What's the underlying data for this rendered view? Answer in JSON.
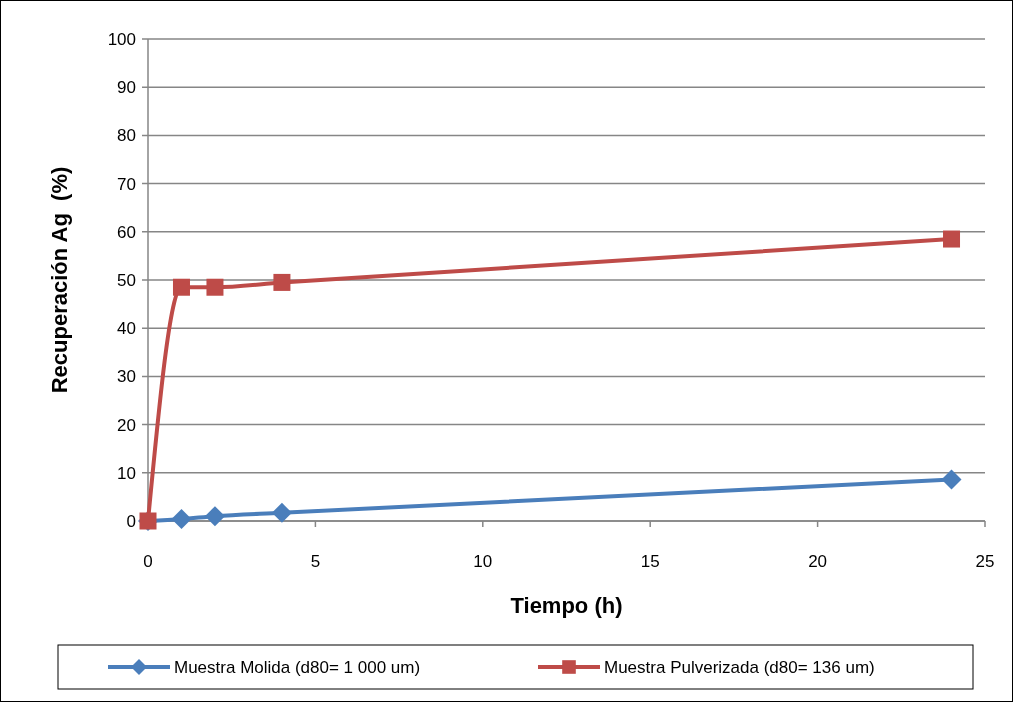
{
  "chart_data": {
    "type": "line",
    "xlabel": "Tiempo (h)",
    "ylabel": "Recuperación Ag  (%)",
    "xlim": [
      0,
      25
    ],
    "xticks": [
      0,
      5,
      10,
      15,
      20,
      25
    ],
    "ylim": [
      0,
      100
    ],
    "yticks": [
      0,
      10,
      20,
      30,
      40,
      50,
      60,
      70,
      80,
      90,
      100
    ],
    "grid": "y",
    "legend": "bottom",
    "series": [
      {
        "name": "Muestra Molida (d80= 1 000 um)",
        "color": "#4a7ebb",
        "marker": "diamond",
        "x": [
          0,
          1,
          2,
          4,
          24
        ],
        "values": [
          0,
          0.4,
          1,
          1.7,
          8.6
        ]
      },
      {
        "name": "Muestra Pulverizada (d80= 136 um)",
        "color": "#be4b48",
        "marker": "square",
        "x": [
          0,
          1,
          2,
          4,
          24
        ],
        "values": [
          0,
          48.5,
          48.5,
          49.5,
          58.5
        ]
      }
    ]
  }
}
